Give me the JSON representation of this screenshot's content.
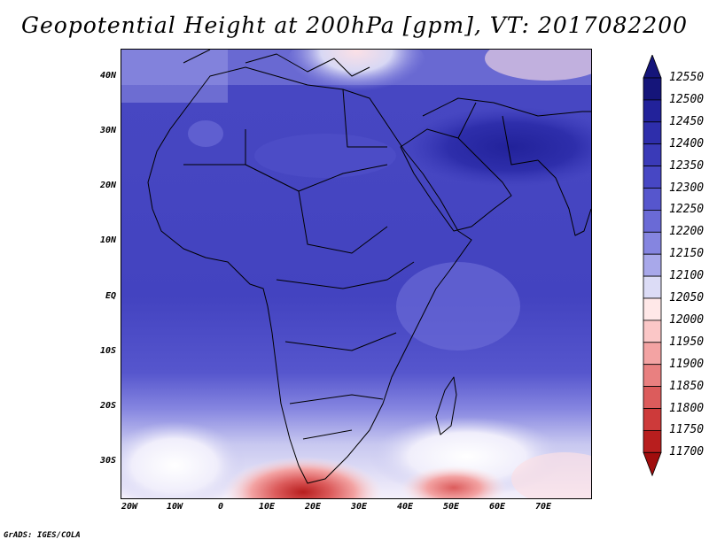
{
  "title": "Geopotential Height at 200hPa [gpm], VT: 2017082200",
  "footer": "GrADS: IGES/COLA",
  "latitude_labels": [
    "40N",
    "30N",
    "20N",
    "10N",
    "EQ",
    "10S",
    "20S",
    "30S"
  ],
  "longitude_labels": [
    "20W",
    "10W",
    "0",
    "10E",
    "20E",
    "30E",
    "40E",
    "50E",
    "60E",
    "70E"
  ],
  "colorbar": {
    "levels": [
      "12550",
      "12500",
      "12450",
      "12400",
      "12350",
      "12300",
      "12250",
      "12200",
      "12150",
      "12100",
      "12050",
      "12000",
      "11950",
      "11900",
      "11850",
      "11800",
      "11750",
      "11700"
    ],
    "colors": [
      "#15157a",
      "#22229a",
      "#2e2eab",
      "#3a3ab8",
      "#4747c4",
      "#5656cd",
      "#6a6ad6",
      "#8585e0",
      "#a8a8ea",
      "#dcdcf6",
      "#ffe8e8",
      "#fbc7c7",
      "#f3a3a3",
      "#e98080",
      "#dc5c5c",
      "#cd3a3a",
      "#b81e1e",
      "#a00d0d"
    ]
  }
}
